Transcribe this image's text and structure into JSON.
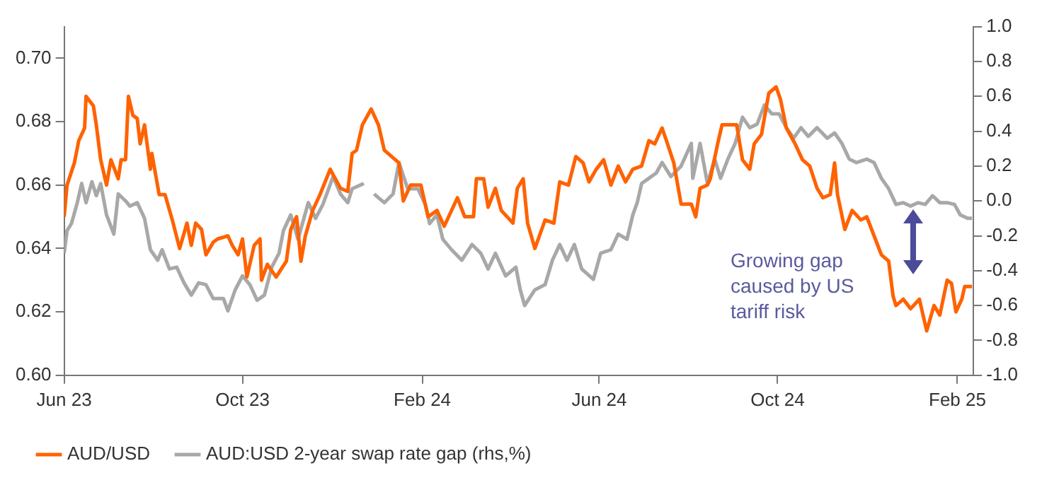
{
  "chart_data": {
    "type": "line",
    "annotations": [
      "Growing gap caused by US tariff risk"
    ],
    "xlim": [
      "2023-06-01",
      "2025-02-12"
    ],
    "xticks": [
      {
        "value": "2023-06-01",
        "label": "Jun 23"
      },
      {
        "value": "2023-10-01",
        "label": "Oct 23"
      },
      {
        "value": "2024-02-01",
        "label": "Feb 24"
      },
      {
        "value": "2024-06-01",
        "label": "Jun 24"
      },
      {
        "value": "2024-10-01",
        "label": "Oct 24"
      },
      {
        "value": "2025-02-01",
        "label": "Feb 25"
      }
    ],
    "ylim": [
      0.6,
      0.71
    ],
    "yticks": [
      {
        "value": 0.6,
        "label": "0.60"
      },
      {
        "value": 0.62,
        "label": "0.62"
      },
      {
        "value": 0.64,
        "label": "0.64"
      },
      {
        "value": 0.66,
        "label": "0.66"
      },
      {
        "value": 0.68,
        "label": "0.68"
      },
      {
        "value": 0.7,
        "label": "0.70"
      }
    ],
    "y2lim": [
      -1,
      1
    ],
    "y2ticks": [
      {
        "value": 1,
        "label": "1.0"
      },
      {
        "value": 0.8,
        "label": "0.8"
      },
      {
        "value": 0.6,
        "label": "0.6"
      },
      {
        "value": 0.4,
        "label": "0.4"
      },
      {
        "value": 0.2,
        "label": "0.2"
      },
      {
        "value": 0,
        "label": "0.0"
      },
      {
        "value": -0.2,
        "label": "-0.2"
      },
      {
        "value": -0.4,
        "label": "-0.4"
      },
      {
        "value": -0.6,
        "label": "-0.6"
      },
      {
        "value": -0.8,
        "label": "-0.8"
      },
      {
        "value": -1,
        "label": "-1.0"
      }
    ],
    "grid": false,
    "legend": "bottom",
    "marker": "none",
    "line_style": "solid",
    "series": [
      {
        "name": "AUD/USD",
        "color": "#ff6200",
        "x": [
          "2023-06-01",
          "2023-06-03",
          "2023-06-08",
          "2023-06-11",
          "2023-06-15",
          "2023-06-16",
          "2023-06-21",
          "2023-06-23",
          "2023-06-26",
          "2023-06-30",
          "2023-07-03",
          "2023-07-08",
          "2023-07-10",
          "2023-07-13",
          "2023-07-15",
          "2023-07-18",
          "2023-07-21",
          "2023-07-23",
          "2023-07-26",
          "2023-07-30",
          "2023-07-31",
          "2023-08-05",
          "2023-08-09",
          "2023-08-14",
          "2023-08-19",
          "2023-08-24",
          "2023-08-27",
          "2023-08-30",
          "2023-09-03",
          "2023-09-06",
          "2023-09-11",
          "2023-09-14",
          "2023-09-21",
          "2023-09-24",
          "2023-09-28",
          "2023-10-01",
          "2023-10-04",
          "2023-10-09",
          "2023-10-13",
          "2023-10-14",
          "2023-10-18",
          "2023-10-24",
          "2023-10-31",
          "2023-11-03",
          "2023-11-07",
          "2023-11-10",
          "2023-11-13",
          "2023-11-18",
          "2023-11-23",
          "2023-11-30",
          "2023-12-07",
          "2023-12-12",
          "2023-12-15",
          "2023-12-18",
          "2023-12-22",
          "2023-12-28",
          "2024-01-02",
          "2024-01-06",
          "2024-01-11",
          "2024-01-16",
          "2024-01-19",
          "2024-01-24",
          "2024-01-31",
          "2024-02-05",
          "2024-02-11",
          "2024-02-16",
          "2024-02-25",
          "2024-03-01",
          "2024-03-07",
          "2024-03-09",
          "2024-03-14",
          "2024-03-17",
          "2024-03-22",
          "2024-03-26",
          "2024-04-03",
          "2024-04-06",
          "2024-04-10",
          "2024-04-13",
          "2024-04-18",
          "2024-04-25",
          "2024-05-01",
          "2024-05-05",
          "2024-05-11",
          "2024-05-16",
          "2024-05-21",
          "2024-05-25",
          "2024-05-30",
          "2024-06-04",
          "2024-06-09",
          "2024-06-14",
          "2024-06-19",
          "2024-06-24",
          "2024-06-30",
          "2024-07-05",
          "2024-07-09",
          "2024-07-14",
          "2024-07-17",
          "2024-07-22",
          "2024-07-27",
          "2024-08-03",
          "2024-08-06",
          "2024-08-09",
          "2024-08-14",
          "2024-08-16",
          "2024-08-21",
          "2024-08-24",
          "2024-08-29",
          "2024-09-03",
          "2024-09-07",
          "2024-09-12",
          "2024-09-15",
          "2024-09-20",
          "2024-09-25",
          "2024-09-30",
          "2024-10-03",
          "2024-10-07",
          "2024-10-13",
          "2024-10-18",
          "2024-10-23",
          "2024-10-28",
          "2024-11-01",
          "2024-11-06",
          "2024-11-09",
          "2024-11-11",
          "2024-11-16",
          "2024-11-21",
          "2024-11-27",
          "2024-12-01",
          "2024-12-06",
          "2024-12-11",
          "2024-12-16",
          "2024-12-19",
          "2024-12-21",
          "2024-12-26",
          "2024-12-31",
          "2025-01-06",
          "2025-01-11",
          "2025-01-16",
          "2025-01-20",
          "2025-01-25",
          "2025-01-28",
          "2025-01-31",
          "2025-02-04",
          "2025-02-06",
          "2025-02-11"
        ],
        "values": [
          0.65,
          0.66,
          0.667,
          0.674,
          0.678,
          0.688,
          0.685,
          0.679,
          0.668,
          0.66,
          0.668,
          0.662,
          0.668,
          0.668,
          0.688,
          0.682,
          0.681,
          0.673,
          0.679,
          0.665,
          0.67,
          0.657,
          0.657,
          0.649,
          0.64,
          0.648,
          0.641,
          0.648,
          0.646,
          0.638,
          0.642,
          0.643,
          0.644,
          0.641,
          0.638,
          0.643,
          0.631,
          0.641,
          0.643,
          0.63,
          0.635,
          0.631,
          0.636,
          0.646,
          0.65,
          0.636,
          0.644,
          0.652,
          0.657,
          0.665,
          0.659,
          0.658,
          0.67,
          0.671,
          0.679,
          0.684,
          0.679,
          0.671,
          0.669,
          0.667,
          0.655,
          0.66,
          0.66,
          0.65,
          0.652,
          0.647,
          0.656,
          0.65,
          0.65,
          0.662,
          0.662,
          0.653,
          0.659,
          0.652,
          0.648,
          0.659,
          0.662,
          0.648,
          0.64,
          0.649,
          0.648,
          0.661,
          0.66,
          0.669,
          0.667,
          0.661,
          0.665,
          0.668,
          0.66,
          0.666,
          0.661,
          0.665,
          0.666,
          0.674,
          0.673,
          0.678,
          0.674,
          0.667,
          0.654,
          0.654,
          0.65,
          0.659,
          0.66,
          0.662,
          0.673,
          0.679,
          0.679,
          0.679,
          0.668,
          0.665,
          0.673,
          0.676,
          0.689,
          0.691,
          0.687,
          0.678,
          0.673,
          0.668,
          0.666,
          0.659,
          0.656,
          0.657,
          0.667,
          0.657,
          0.646,
          0.652,
          0.649,
          0.65,
          0.644,
          0.638,
          0.636,
          0.625,
          0.622,
          0.624,
          0.621,
          0.624,
          0.614,
          0.622,
          0.619,
          0.63,
          0.629,
          0.62,
          0.624,
          0.628,
          0.628
        ]
      },
      {
        "name": "AUD:USD 2-year swap rate gap (rhs,%)",
        "color": "#a8a8a8",
        "axis": "y2",
        "x": [
          "2023-06-01",
          "2023-06-03",
          "2023-06-06",
          "2023-06-10",
          "2023-06-13",
          "2023-06-16",
          "2023-06-20",
          "2023-06-23",
          "2023-06-26",
          "2023-06-30",
          "2023-07-05",
          "2023-07-08",
          "2023-07-13",
          "2023-07-16",
          "2023-07-21",
          "2023-07-26",
          "2023-07-30",
          "2023-08-04",
          "2023-08-07",
          "2023-08-12",
          "2023-08-17",
          "2023-08-22",
          "2023-08-27",
          "2023-09-01",
          "2023-09-06",
          "2023-09-11",
          "2023-09-18",
          "2023-09-21",
          "2023-09-26",
          "2023-10-01",
          "2023-10-06",
          "2023-10-11",
          "2023-10-16",
          "2023-10-21",
          "2023-10-26",
          "2023-10-29",
          "2023-11-03",
          "2023-11-08",
          "2023-11-15",
          "2023-11-20",
          "2023-11-25",
          "2023-12-02",
          "2023-12-07",
          "2023-12-12",
          "2023-12-15",
          "2023-12-23",
          "2023-12-26",
          "2023-12-30",
          "2024-01-06",
          "2024-01-12",
          "2024-01-16",
          "2024-01-22",
          "2024-01-29",
          "2024-02-03",
          "2024-02-06",
          "2024-02-11",
          "2024-02-15",
          "2024-02-21",
          "2024-02-28",
          "2024-03-06",
          "2024-03-12",
          "2024-03-17",
          "2024-03-22",
          "2024-03-29",
          "2024-04-05",
          "2024-04-08",
          "2024-04-11",
          "2024-04-18",
          "2024-04-25",
          "2024-04-30",
          "2024-05-05",
          "2024-05-10",
          "2024-05-15",
          "2024-05-20",
          "2024-05-28",
          "2024-06-02",
          "2024-06-09",
          "2024-06-14",
          "2024-06-20",
          "2024-06-24",
          "2024-06-27",
          "2024-06-30",
          "2024-07-05",
          "2024-07-10",
          "2024-07-14",
          "2024-07-20",
          "2024-07-27",
          "2024-08-03",
          "2024-08-04",
          "2024-08-09",
          "2024-08-14",
          "2024-08-19",
          "2024-08-23",
          "2024-08-28",
          "2024-09-02",
          "2024-09-07",
          "2024-09-12",
          "2024-09-17",
          "2024-09-22",
          "2024-09-27",
          "2024-10-02",
          "2024-10-07",
          "2024-10-12",
          "2024-10-17",
          "2024-10-22",
          "2024-10-28",
          "2024-11-04",
          "2024-11-09",
          "2024-11-14",
          "2024-11-19",
          "2024-11-24",
          "2024-12-01",
          "2024-12-06",
          "2024-12-11",
          "2024-12-16",
          "2024-12-21",
          "2024-12-26",
          "2024-12-31",
          "2025-01-05",
          "2025-01-10",
          "2025-01-15",
          "2025-01-20",
          "2025-01-25",
          "2025-01-30",
          "2025-02-03",
          "2025-02-08",
          "2025-02-11"
        ],
        "values": [
          -0.3,
          -0.17,
          -0.13,
          -0.01,
          0.1,
          -0.01,
          0.11,
          0.03,
          0.1,
          -0.08,
          -0.19,
          0.04,
          0.0,
          -0.03,
          -0.01,
          -0.1,
          -0.28,
          -0.34,
          -0.28,
          -0.39,
          -0.38,
          -0.47,
          -0.54,
          -0.47,
          -0.48,
          -0.56,
          -0.56,
          -0.63,
          -0.51,
          -0.43,
          -0.48,
          -0.57,
          -0.54,
          -0.38,
          -0.3,
          -0.17,
          -0.08,
          -0.22,
          -0.01,
          -0.1,
          -0.02,
          0.14,
          0.04,
          -0.01,
          0.07,
          0.1,
          null,
          0.04,
          -0.01,
          0.04,
          0.22,
          0.07,
          0.07,
          -0.02,
          -0.13,
          -0.08,
          -0.22,
          -0.28,
          -0.34,
          -0.25,
          -0.3,
          -0.39,
          -0.3,
          -0.43,
          -0.38,
          -0.51,
          -0.6,
          -0.51,
          -0.48,
          -0.34,
          -0.25,
          -0.34,
          -0.25,
          -0.39,
          -0.45,
          -0.3,
          -0.28,
          -0.19,
          -0.22,
          -0.08,
          -0.01,
          0.1,
          0.13,
          0.16,
          0.22,
          0.14,
          0.2,
          0.33,
          0.13,
          0.33,
          0.1,
          0.24,
          0.13,
          0.24,
          0.33,
          0.48,
          0.42,
          0.44,
          0.55,
          0.5,
          0.5,
          0.42,
          0.36,
          0.42,
          0.37,
          0.42,
          0.36,
          0.39,
          0.33,
          0.24,
          0.22,
          0.24,
          0.22,
          0.13,
          0.07,
          -0.02,
          -0.01,
          -0.03,
          -0.01,
          -0.02,
          0.03,
          -0.01,
          -0.01,
          -0.02,
          -0.08,
          -0.1,
          -0.1
        ]
      }
    ]
  }
}
